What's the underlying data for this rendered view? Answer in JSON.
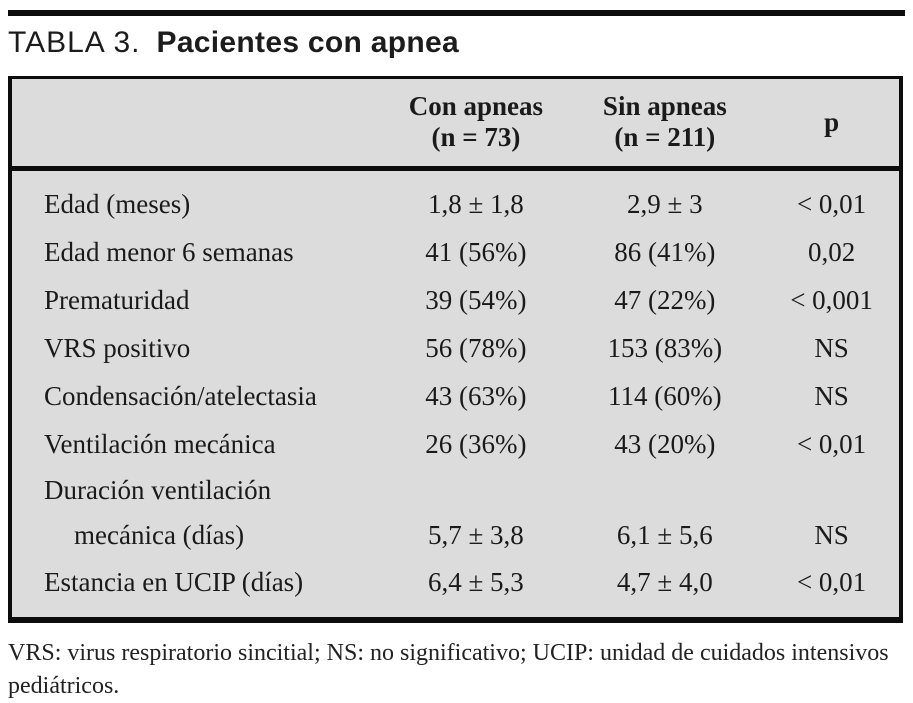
{
  "title": {
    "prefix": "TABLA 3.",
    "main": "Pacientes con apnea"
  },
  "table": {
    "header": {
      "con_line1": "Con apneas",
      "con_line2": "(n = 73)",
      "sin_line1": "Sin apneas",
      "sin_line2": "(n = 211)",
      "p": "p"
    },
    "rows": [
      {
        "label": "Edad (meses)",
        "con": "1,8 ± 1,8",
        "sin": "2,9 ± 3",
        "p": "< 0,01"
      },
      {
        "label": "Edad menor 6 semanas",
        "con": "41 (56%)",
        "sin": "86 (41%)",
        "p": "0,02"
      },
      {
        "label": "Prematuridad",
        "con": "39 (54%)",
        "sin": "47 (22%)",
        "p": "< 0,001"
      },
      {
        "label": "VRS positivo",
        "con": "56 (78%)",
        "sin": "153 (83%)",
        "p": "NS"
      },
      {
        "label": "Condensación/atelectasia",
        "con": "43 (63%)",
        "sin": "114 (60%)",
        "p": "NS"
      },
      {
        "label": "Ventilación mecánica",
        "con": "26 (36%)",
        "sin": "43 (20%)",
        "p": "< 0,01"
      },
      {
        "label": "Duración ventilación",
        "label2": "mecánica (días)",
        "con": "5,7 ± 3,8",
        "sin": "6,1 ± 5,6",
        "p": "NS"
      },
      {
        "label": "Estancia en UCIP (días)",
        "con": "6,4 ± 5,3",
        "sin": "4,7 ± 4,0",
        "p": "< 0,01"
      }
    ]
  },
  "footnote": "VRS: virus respiratorio sincitial; NS: no significativo; UCIP: unidad de cuidados intensivos pediátricos.",
  "colors": {
    "table_background": "#dcdcdc",
    "rule": "#0c0c0c",
    "text": "#1a1a1a"
  }
}
